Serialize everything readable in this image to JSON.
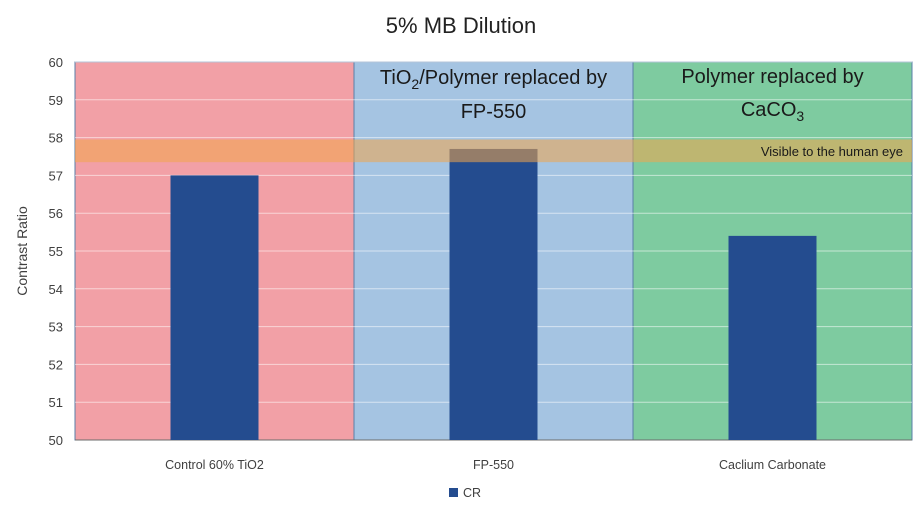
{
  "chart_data": {
    "type": "bar",
    "title": "5% MB Dilution",
    "ylabel": "Contrast Ratio",
    "xlabel": "",
    "ylim": [
      50,
      60
    ],
    "yticks": [
      50,
      51,
      52,
      53,
      54,
      55,
      56,
      57,
      58,
      59,
      60
    ],
    "categories": [
      "Control 60% TiO2",
      "FP-550",
      "Caclium Carbonate"
    ],
    "series": [
      {
        "name": "CR",
        "values": [
          57.0,
          57.7,
          55.4
        ],
        "color": "#244c8f"
      }
    ],
    "regions": [
      {
        "label_lines": [
          [
            "TiO",
            "2",
            "/Polymer replaced by"
          ],
          [
            "FP-550"
          ]
        ],
        "category": 0,
        "color": "#f2a0a6"
      },
      {
        "label_lines": [
          [
            "TiO",
            "2",
            "/Polymer replaced by"
          ],
          [
            "FP-550"
          ]
        ],
        "category": 1,
        "color": "#a5c4e2"
      },
      {
        "label_lines": [
          [
            "Polymer replaced by"
          ],
          [
            "CaCO",
            "3",
            ""
          ]
        ],
        "category": 2,
        "color": "#7ecba0"
      }
    ],
    "band": {
      "from": 57.35,
      "to": 57.95,
      "label": "Visible to the human eye",
      "color": "#f2a64a"
    },
    "grid": true,
    "legend_position": "bottom"
  }
}
